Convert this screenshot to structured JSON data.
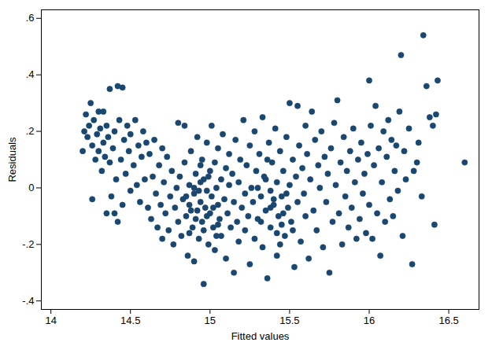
{
  "chart_data": {
    "type": "scatter",
    "x_label": "Fitted values",
    "y_label": "Residuals",
    "color": "#1a476f",
    "marker": "circle",
    "xlim": [
      13.94,
      16.69
    ],
    "ylim": [
      -0.43,
      0.63
    ],
    "xticks": [
      14,
      14.5,
      15,
      15.5,
      16,
      16.5
    ],
    "yticks": [
      {
        "value": -0.4,
        "label": "-.4"
      },
      {
        "value": -0.2,
        "label": "-.2"
      },
      0,
      {
        "value": 0.2,
        "label": ".2"
      },
      {
        "value": 0.4,
        "label": ".4"
      },
      {
        "value": 0.6,
        "label": ".6"
      }
    ],
    "x": [
      14.2,
      14.21,
      14.22,
      14.23,
      14.24,
      14.25,
      14.26,
      14.26,
      14.27,
      14.28,
      14.29,
      14.3,
      14.3,
      14.31,
      14.32,
      14.33,
      14.33,
      14.34,
      14.35,
      14.35,
      14.36,
      14.37,
      14.37,
      14.38,
      14.39,
      14.4,
      14.4,
      14.41,
      14.42,
      14.42,
      14.43,
      14.44,
      14.45,
      14.45,
      14.46,
      14.47,
      14.48,
      14.49,
      14.5,
      14.5,
      14.52,
      14.53,
      14.54,
      14.55,
      14.56,
      14.57,
      14.58,
      14.59,
      14.6,
      14.61,
      14.62,
      14.63,
      14.64,
      14.65,
      14.66,
      14.67,
      14.68,
      14.69,
      14.7,
      14.7,
      14.71,
      14.72,
      14.73,
      14.74,
      14.75,
      14.76,
      14.77,
      14.78,
      14.79,
      14.8,
      14.8,
      14.81,
      14.82,
      14.83,
      14.84,
      14.84,
      14.85,
      14.86,
      14.87,
      14.87,
      14.88,
      14.89,
      14.9,
      14.9,
      14.91,
      14.92,
      14.92,
      14.93,
      14.94,
      14.94,
      14.95,
      14.95,
      14.96,
      14.96,
      14.97,
      14.98,
      14.98,
      14.99,
      15.0,
      15.0,
      15.01,
      15.01,
      15.02,
      15.03,
      15.03,
      15.04,
      15.05,
      15.05,
      15.06,
      15.07,
      15.07,
      15.08,
      15.09,
      15.1,
      15.1,
      15.11,
      15.12,
      15.12,
      15.13,
      15.14,
      15.15,
      15.15,
      15.16,
      15.17,
      15.18,
      15.18,
      15.19,
      15.2,
      15.21,
      15.22,
      15.22,
      15.23,
      15.24,
      15.25,
      15.25,
      15.26,
      15.27,
      15.28,
      15.28,
      15.29,
      15.3,
      15.31,
      15.32,
      15.33,
      15.33,
      15.34,
      15.35,
      15.36,
      15.37,
      15.38,
      15.38,
      15.39,
      15.4,
      15.41,
      15.42,
      15.42,
      15.43,
      15.44,
      15.45,
      15.46,
      15.47,
      15.48,
      15.49,
      15.5,
      15.5,
      15.51,
      15.52,
      15.53,
      15.54,
      15.55,
      15.55,
      15.56,
      15.57,
      15.58,
      15.59,
      15.6,
      15.6,
      15.61,
      15.62,
      15.63,
      15.64,
      15.65,
      15.66,
      15.67,
      15.68,
      15.69,
      15.7,
      15.71,
      15.72,
      15.73,
      15.74,
      15.75,
      15.76,
      15.77,
      15.78,
      15.79,
      15.8,
      15.81,
      15.82,
      15.83,
      15.84,
      15.85,
      15.86,
      15.87,
      15.88,
      15.89,
      15.9,
      15.91,
      15.92,
      15.93,
      15.94,
      15.95,
      15.96,
      15.97,
      15.98,
      15.99,
      16.0,
      16.0,
      16.01,
      16.02,
      16.03,
      16.04,
      16.05,
      16.06,
      16.07,
      16.08,
      16.09,
      16.1,
      16.11,
      16.12,
      16.13,
      16.14,
      16.15,
      16.16,
      16.17,
      16.18,
      16.19,
      16.2,
      16.21,
      16.22,
      16.23,
      16.25,
      16.27,
      16.28,
      16.3,
      16.31,
      16.33,
      16.34,
      16.36,
      16.38,
      16.4,
      16.41,
      16.43,
      16.42,
      16.6,
      15.05,
      14.98,
      15.4,
      15.45,
      14.9,
      14.85,
      14.88,
      14.91,
      14.93,
      14.96,
      14.99,
      15.02,
      14.87,
      14.94,
      15.04,
      15.35,
      15.38,
      15.42,
      15.46,
      15.32,
      15.48,
      15.36,
      15.44,
      15.3,
      15.52
    ],
    "values": [
      0.13,
      0.2,
      0.26,
      0.18,
      0.22,
      0.3,
      -0.04,
      0.15,
      0.24,
      0.1,
      0.19,
      0.27,
      0.13,
      0.21,
      0.06,
      0.27,
      0.16,
      0.11,
      -0.09,
      0.22,
      0.18,
      0.35,
      0.09,
      -0.03,
      0.14,
      0.2,
      -0.09,
      0.03,
      0.36,
      -0.12,
      0.24,
      0.1,
      0.355,
      -0.06,
      0.17,
      0.05,
      0.22,
      0.13,
      -0.01,
      0.19,
      0.08,
      0.24,
      0.01,
      0.15,
      -0.05,
      0.11,
      0.2,
      0.03,
      0.16,
      -0.07,
      0.12,
      -0.11,
      0.04,
      0.17,
      -0.02,
      -0.14,
      0.08,
      -0.06,
      0.14,
      -0.18,
      0.02,
      -0.09,
      0.11,
      -0.15,
      -0.03,
      0.06,
      -0.2,
      -0.07,
      0.0,
      0.23,
      -0.12,
      0.04,
      -0.17,
      -0.04,
      0.22,
      0.09,
      -0.1,
      -0.24,
      0.01,
      -0.06,
      0.13,
      -0.14,
      -0.02,
      -0.26,
      0.05,
      -0.08,
      0.18,
      -0.18,
      0.02,
      -0.05,
      0.1,
      -0.12,
      -0.34,
      0.03,
      -0.07,
      0.16,
      -0.01,
      -0.2,
      0.06,
      -0.09,
      0.22,
      -0.03,
      -0.14,
      0.09,
      -0.22,
      0.0,
      -0.06,
      0.14,
      -0.11,
      0.03,
      -0.17,
      0.19,
      -0.04,
      0.07,
      -0.25,
      -0.09,
      0.12,
      0.01,
      -0.14,
      0.05,
      -0.05,
      -0.3,
      0.17,
      -0.12,
      0.02,
      -0.19,
      0.1,
      -0.07,
      0.24,
      -0.02,
      -0.15,
      0.08,
      -0.1,
      0.15,
      -0.27,
      0.0,
      -0.05,
      0.2,
      -0.18,
      0.06,
      -0.11,
      0.12,
      -0.03,
      0.25,
      -0.21,
      0.04,
      -0.08,
      -0.32,
      0.16,
      -0.01,
      -0.14,
      0.09,
      -0.06,
      0.21,
      0.02,
      -0.24,
      -0.1,
      0.13,
      -0.03,
      0.06,
      -0.17,
      0.18,
      -0.07,
      0.3,
      0.01,
      -0.12,
      0.1,
      -0.28,
      0.04,
      0.29,
      -0.05,
      0.15,
      -0.19,
      0.07,
      -0.02,
      0.22,
      -0.1,
      0.12,
      -0.25,
      0.03,
      0.27,
      -0.08,
      0.17,
      -0.15,
      0.08,
      0.0,
      0.2,
      -0.21,
      0.11,
      -0.05,
      0.05,
      -0.3,
      0.14,
      -0.12,
      0.23,
      0.01,
      0.31,
      -0.09,
      0.09,
      -0.2,
      0.18,
      -0.03,
      0.06,
      -0.14,
      0.13,
      -0.07,
      0.21,
      0.02,
      -0.18,
      0.1,
      -0.11,
      0.16,
      -0.02,
      0.05,
      -0.16,
      0.12,
      0.38,
      -0.06,
      0.22,
      -0.18,
      0.08,
      0.29,
      -0.09,
      0.14,
      -0.24,
      0.02,
      0.2,
      -0.12,
      0.11,
      0.24,
      -0.04,
      0.17,
      -0.1,
      0.06,
      0.15,
      -0.01,
      0.27,
      0.47,
      -0.17,
      0.13,
      0.03,
      0.21,
      -0.27,
      0.06,
      0.09,
      0.16,
      -0.03,
      0.54,
      0.36,
      0.25,
      0.22,
      -0.13,
      0.38,
      0.26,
      0.09,
      -0.13,
      -0.1,
      -0.04,
      -0.13,
      0.0,
      -0.03,
      -0.08,
      -0.11,
      -0.01,
      -0.15,
      0.04,
      -0.07,
      -0.16,
      0.08,
      -0.17,
      0.03,
      -0.07,
      -0.16,
      -0.09,
      -0.12,
      -0.02,
      0.1,
      -0.2,
      0.0,
      -0.15
    ]
  }
}
